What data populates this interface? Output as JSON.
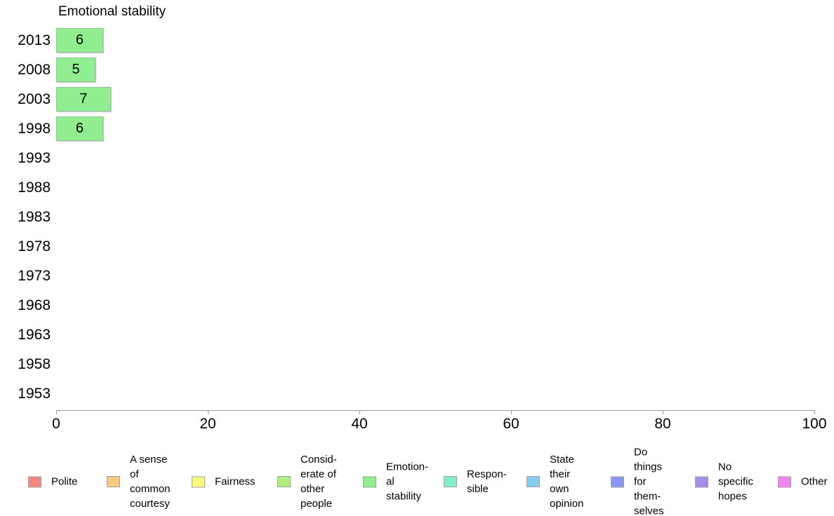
{
  "chart_data": {
    "type": "bar",
    "orientation": "horizontal",
    "title": "Emotional stability",
    "categories": [
      "2013",
      "2008",
      "2003",
      "1998",
      "1993",
      "1988",
      "1983",
      "1978",
      "1973",
      "1968",
      "1963",
      "1958",
      "1953"
    ],
    "values": [
      6,
      5,
      7,
      6,
      0,
      0,
      0,
      0,
      0,
      0,
      0,
      0,
      0
    ],
    "bar_labels": [
      "6",
      "5",
      "7",
      "6",
      "",
      "",
      "",
      "",
      "",
      "",
      "",
      "",
      ""
    ],
    "xlim": [
      0,
      100
    ],
    "x_ticks": [
      "0",
      "20",
      "40",
      "60",
      "80",
      "100"
    ],
    "grid": false,
    "legend_position": "bottom",
    "colors": {
      "bar_fill": "#90ee90",
      "bar_border": "#94c594",
      "axis": "#9c9c9c",
      "text": "#000000",
      "background": "#ffffff"
    },
    "legend": [
      {
        "label": "Polite",
        "color": "#f8847e"
      },
      {
        "label": "A sense\nof\ncommon\ncourtesy",
        "color": "#fcc87e"
      },
      {
        "label": "Fairness",
        "color": "#fafa80"
      },
      {
        "label": "Consid-\nerate of\nother\npeople",
        "color": "#aff07e"
      },
      {
        "label": "Emotion-\nal\nstability",
        "color": "#90ee90"
      },
      {
        "label": "Respon-\nsible",
        "color": "#80eec8"
      },
      {
        "label": "State\ntheir\nown\nopinion",
        "color": "#82cef0"
      },
      {
        "label": "Do\nthings\nfor\nthem-\nselves",
        "color": "#8894f8"
      },
      {
        "label": "No\nspecific\nhopes",
        "color": "#a88bee"
      },
      {
        "label": "Other",
        "color": "#f484f4"
      }
    ]
  }
}
